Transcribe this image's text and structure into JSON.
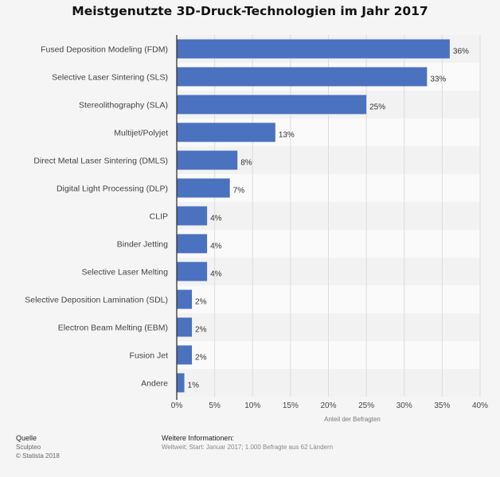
{
  "chart_data": {
    "type": "bar",
    "orientation": "horizontal",
    "title": "Meistgenutzte 3D-Druck-Technologien im Jahr 2017",
    "xlabel": "Anteil der Befragten",
    "ylabel": "",
    "xlim": [
      0,
      40
    ],
    "ticks": [
      0,
      5,
      10,
      15,
      20,
      25,
      30,
      35,
      40
    ],
    "tick_suffix": "%",
    "grid": true,
    "categories": [
      "Fused Deposition Modeling (FDM)",
      "Selective Laser Sintering (SLS)",
      "Stereolithography (SLA)",
      "Multijet/Polyjet",
      "Direct Metal Laser Sintering (DMLS)",
      "Digital Light Processing (DLP)",
      "CLIP",
      "Binder Jetting",
      "Selective Laser Melting",
      "Selective Deposition Lamination (SDL)",
      "Electron Beam Melting (EBM)",
      "Fusion Jet",
      "Andere"
    ],
    "values": [
      36,
      33,
      25,
      13,
      8,
      7,
      4,
      4,
      4,
      2,
      2,
      2,
      1
    ],
    "data_labels": [
      "36%",
      "33%",
      "25%",
      "13%",
      "8%",
      "7%",
      "4%",
      "4%",
      "4%",
      "2%",
      "2%",
      "2%",
      "1%"
    ],
    "bar_color": "#4a72bf"
  },
  "footer": {
    "source_head": "Quelle",
    "source_name": "Sculpteo",
    "copyright": "© Statista 2018",
    "info_head": "Weitere Informationen:",
    "info_text": "Weltweit; Start: Januar 2017; 1.000 Befragte aus 62 Ländern"
  }
}
